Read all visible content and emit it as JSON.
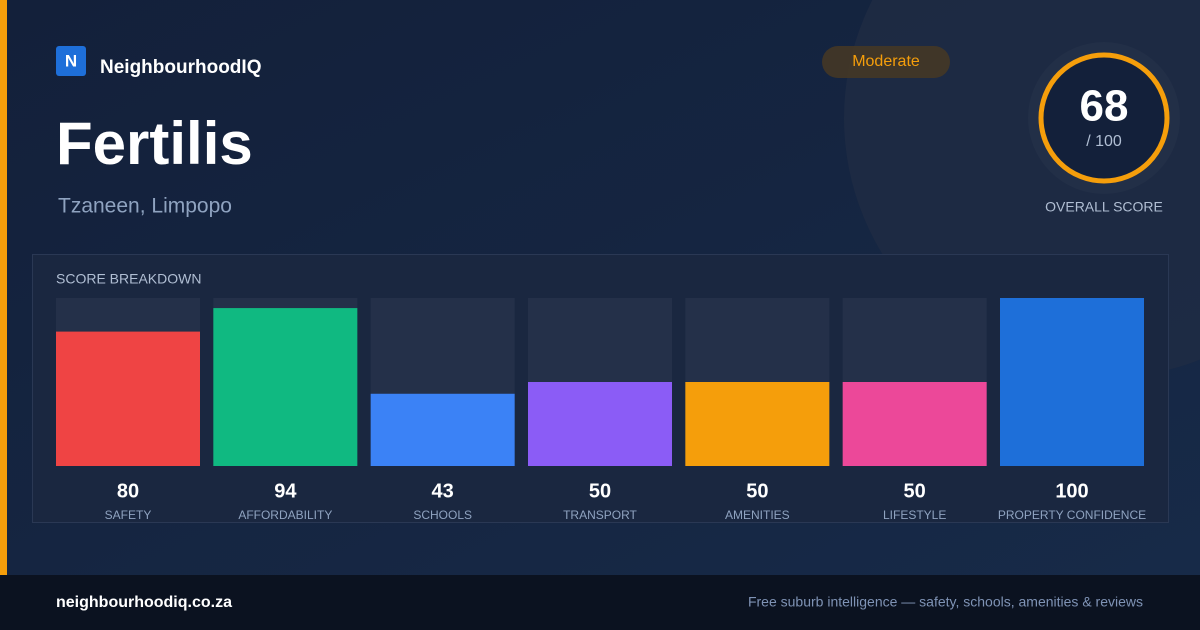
{
  "header": {
    "logo_letter": "N",
    "brand": "NeighbourhoodIQ",
    "title": "Fertilis",
    "location": "Tzaneen, Limpopo",
    "rating": "Moderate"
  },
  "overall": {
    "score": "68",
    "out_of": "/ 100",
    "label": "OVERALL SCORE"
  },
  "chart_data": {
    "type": "bar",
    "title": "SCORE BREAKDOWN",
    "categories": [
      "SAFETY",
      "AFFORDABILITY",
      "SCHOOLS",
      "TRANSPORT",
      "AMENITIES",
      "LIFESTYLE",
      "PROPERTY CONFIDENCE"
    ],
    "values": [
      80,
      94,
      43,
      50,
      50,
      50,
      100
    ],
    "colors": [
      "#ef4444",
      "#10b981",
      "#3b82f6",
      "#8b5cf6",
      "#f59e0b",
      "#ec4899",
      "#1e6fd9"
    ],
    "ylim": [
      0,
      100
    ]
  },
  "footer": {
    "site": "neighbourhoodiq.co.za",
    "tagline": "Free suburb intelligence — safety, schools, amenities & reviews"
  }
}
